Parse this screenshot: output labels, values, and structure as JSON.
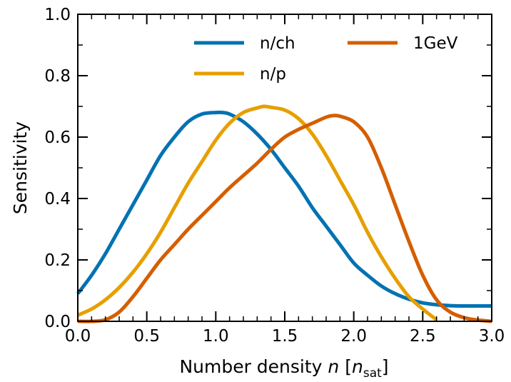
{
  "chart_data": {
    "type": "line",
    "title": "",
    "xlabel": {
      "prefix": "Number density ",
      "var": "n",
      "bracket_open": " [",
      "unit_var": "n",
      "unit_sub": "sat",
      "bracket_close": "]"
    },
    "ylabel": "Sensitivity",
    "xlim": [
      0.0,
      3.0
    ],
    "ylim": [
      0.0,
      1.0
    ],
    "xticks": [
      "0.0",
      "0.5",
      "1.0",
      "1.5",
      "2.0",
      "2.5",
      "3.0"
    ],
    "yticks": [
      "0.0",
      "0.2",
      "0.4",
      "0.6",
      "0.8",
      "1.0"
    ],
    "legend_placement": "top-right",
    "series": [
      {
        "name": "n/ch",
        "color": "#0072b2",
        "x": [
          0.0,
          0.1,
          0.2,
          0.3,
          0.4,
          0.5,
          0.6,
          0.7,
          0.8,
          0.9,
          1.0,
          1.05,
          1.1,
          1.2,
          1.3,
          1.4,
          1.5,
          1.6,
          1.7,
          1.8,
          1.9,
          2.0,
          2.1,
          2.2,
          2.3,
          2.4,
          2.5,
          2.6,
          2.7,
          2.8,
          2.9,
          3.0
        ],
        "y": [
          0.09,
          0.15,
          0.22,
          0.3,
          0.38,
          0.46,
          0.54,
          0.6,
          0.65,
          0.675,
          0.68,
          0.68,
          0.675,
          0.65,
          0.61,
          0.56,
          0.5,
          0.44,
          0.37,
          0.31,
          0.25,
          0.19,
          0.15,
          0.115,
          0.09,
          0.072,
          0.06,
          0.054,
          0.051,
          0.05,
          0.05,
          0.05
        ]
      },
      {
        "name": "n/p",
        "color": "#e69f00",
        "x": [
          0.0,
          0.1,
          0.2,
          0.3,
          0.4,
          0.5,
          0.6,
          0.7,
          0.8,
          0.9,
          1.0,
          1.1,
          1.2,
          1.3,
          1.35,
          1.4,
          1.5,
          1.6,
          1.7,
          1.8,
          1.9,
          2.0,
          2.1,
          2.2,
          2.3,
          2.4,
          2.5,
          2.6
        ],
        "y": [
          0.02,
          0.04,
          0.07,
          0.11,
          0.16,
          0.22,
          0.29,
          0.37,
          0.45,
          0.52,
          0.59,
          0.645,
          0.68,
          0.695,
          0.7,
          0.697,
          0.688,
          0.66,
          0.61,
          0.54,
          0.46,
          0.38,
          0.29,
          0.21,
          0.14,
          0.08,
          0.04,
          0.005
        ]
      },
      {
        "name": "1GeV",
        "color": "#d55e00",
        "x": [
          0.0,
          0.1,
          0.2,
          0.3,
          0.4,
          0.5,
          0.6,
          0.7,
          0.8,
          0.9,
          1.0,
          1.1,
          1.2,
          1.3,
          1.4,
          1.5,
          1.6,
          1.7,
          1.8,
          1.85,
          1.9,
          2.0,
          2.1,
          2.2,
          2.3,
          2.4,
          2.5,
          2.6,
          2.7,
          2.8,
          2.9,
          3.0
        ],
        "y": [
          0.0,
          0.0,
          0.005,
          0.03,
          0.08,
          0.14,
          0.2,
          0.25,
          0.3,
          0.345,
          0.39,
          0.435,
          0.475,
          0.515,
          0.56,
          0.6,
          0.625,
          0.645,
          0.665,
          0.67,
          0.668,
          0.65,
          0.6,
          0.5,
          0.38,
          0.26,
          0.15,
          0.07,
          0.03,
          0.012,
          0.004,
          0.0
        ]
      }
    ]
  }
}
